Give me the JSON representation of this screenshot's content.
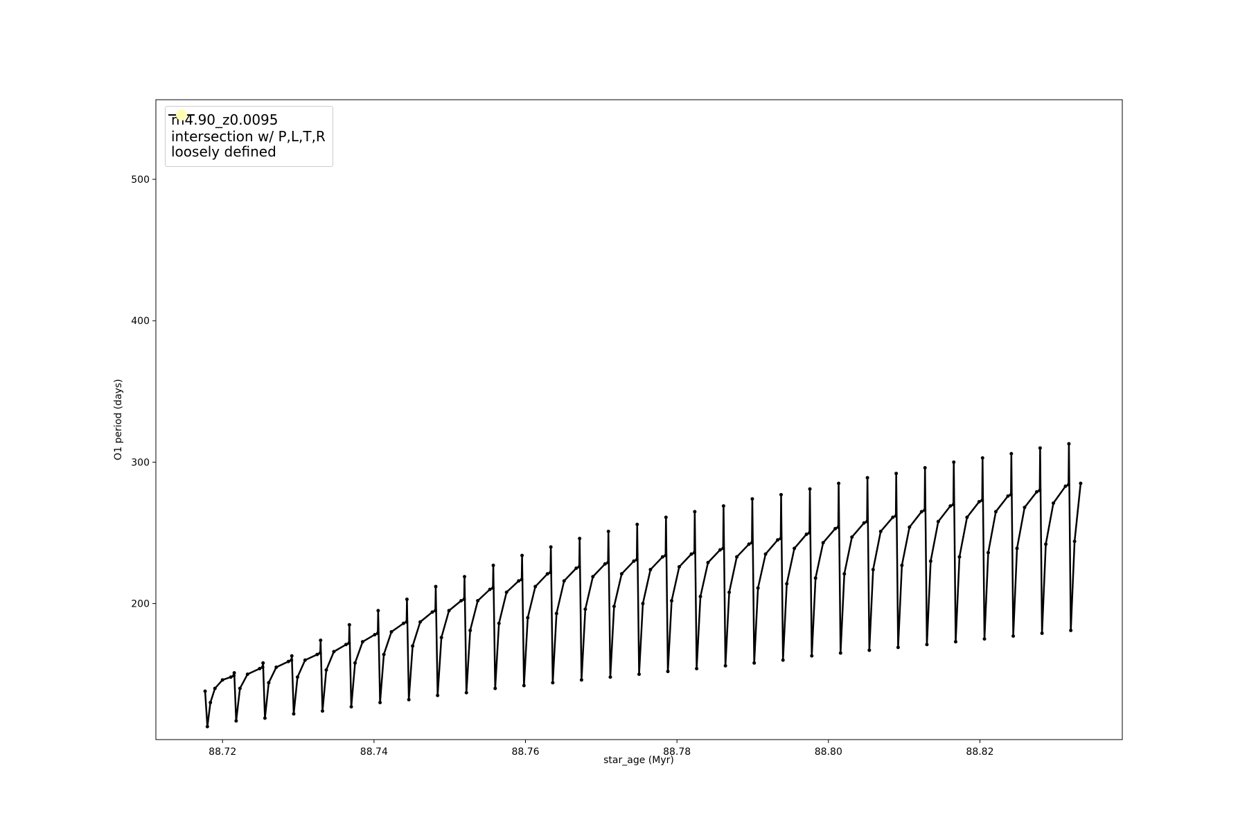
{
  "chart_data": {
    "type": "line",
    "xlabel": "star_age (Myr)",
    "ylabel": "O1 period (days)",
    "xlim": [
      88.7112,
      88.8388
    ],
    "ylim": [
      103.8,
      556.3
    ],
    "xticks": [
      88.72,
      88.74,
      88.76,
      88.78,
      {
        "value": 88.8,
        "label": "88.80"
      },
      88.82
    ],
    "yticks": [
      200,
      300,
      400,
      500
    ],
    "grid": false,
    "legend": "upper left",
    "series": [
      {
        "name": "m4.90_z0.0095",
        "color": "#000000",
        "x": [
          88.7177,
          88.718,
          88.7184,
          88.719,
          88.72,
          88.7211,
          88.7215,
          88.72155,
          88.7218,
          88.7223,
          88.7233,
          88.7249,
          88.7253,
          88.72535,
          88.7256,
          88.7261,
          88.7271,
          88.7287,
          88.7291,
          88.72915,
          88.7294,
          88.7299,
          88.7309,
          88.7325,
          88.7329,
          88.73295,
          88.7332,
          88.7337,
          88.7347,
          88.7363,
          88.7367,
          88.73675,
          88.737,
          88.7375,
          88.7385,
          88.7401,
          88.7405,
          88.74055,
          88.7408,
          88.7413,
          88.7423,
          88.7439,
          88.7443,
          88.74435,
          88.7446,
          88.7451,
          88.7461,
          88.7477,
          88.7481,
          88.74815,
          88.7484,
          88.7489,
          88.7499,
          88.7515,
          88.7519,
          88.75195,
          88.7522,
          88.7527,
          88.7537,
          88.7553,
          88.7557,
          88.75575,
          88.756,
          88.7565,
          88.7575,
          88.7591,
          88.7595,
          88.75955,
          88.7598,
          88.7603,
          88.7613,
          88.7629,
          88.7633,
          88.76335,
          88.7636,
          88.7641,
          88.7651,
          88.7667,
          88.7671,
          88.76715,
          88.7674,
          88.7679,
          88.7689,
          88.7705,
          88.7709,
          88.77095,
          88.7712,
          88.7717,
          88.7727,
          88.7743,
          88.7747,
          88.77475,
          88.775,
          88.7755,
          88.7765,
          88.7781,
          88.7785,
          88.77855,
          88.7788,
          88.7793,
          88.7803,
          88.7819,
          88.7823,
          88.78235,
          88.7826,
          88.7831,
          88.7841,
          88.7857,
          88.7861,
          88.78615,
          88.7864,
          88.7869,
          88.7879,
          88.7895,
          88.7899,
          88.78995,
          88.7902,
          88.7907,
          88.7917,
          88.7933,
          88.7937,
          88.79375,
          88.794,
          88.7945,
          88.7955,
          88.7971,
          88.7975,
          88.79755,
          88.7978,
          88.7983,
          88.7993,
          88.8009,
          88.8013,
          88.80135,
          88.8016,
          88.8021,
          88.8031,
          88.8047,
          88.8051,
          88.80515,
          88.8054,
          88.8059,
          88.8069,
          88.8085,
          88.8089,
          88.80895,
          88.8092,
          88.8097,
          88.8107,
          88.8123,
          88.8127,
          88.81275,
          88.813,
          88.8135,
          88.8145,
          88.8161,
          88.8165,
          88.81655,
          88.8168,
          88.8173,
          88.8183,
          88.8199,
          88.8203,
          88.82035,
          88.8206,
          88.8211,
          88.8221,
          88.8237,
          88.8241,
          88.82415,
          88.8244,
          88.8249,
          88.8259,
          88.8275,
          88.8279,
          88.82795,
          88.8282,
          88.8287,
          88.8297,
          88.8313,
          88.8317,
          88.83175,
          88.832,
          88.8325,
          88.8333
        ],
        "values": [
          138,
          113,
          130,
          140,
          146,
          148,
          149,
          151,
          117,
          140,
          150,
          154,
          155,
          158,
          119,
          144,
          155,
          159,
          160,
          163,
          122,
          148,
          160,
          164,
          165,
          174,
          124,
          153,
          166,
          171,
          172,
          185,
          127,
          158,
          173,
          178,
          179,
          195,
          130,
          164,
          180,
          186,
          187,
          203,
          132,
          170,
          187,
          194,
          195,
          212,
          135,
          176,
          195,
          202,
          203,
          219,
          137,
          181,
          202,
          210,
          211,
          227,
          140,
          186,
          208,
          216,
          217,
          234,
          142,
          190,
          212,
          221,
          222,
          240,
          144,
          193,
          216,
          225,
          226,
          246,
          146,
          196,
          219,
          228,
          229,
          251,
          148,
          198,
          221,
          230,
          231,
          256,
          150,
          200,
          224,
          233,
          234,
          261,
          152,
          202,
          226,
          235,
          236,
          265,
          154,
          205,
          229,
          238,
          239,
          269,
          156,
          208,
          233,
          242,
          243,
          274,
          158,
          211,
          235,
          245,
          246,
          277,
          160,
          214,
          239,
          249,
          250,
          281,
          163,
          218,
          243,
          253,
          254,
          285,
          165,
          221,
          247,
          257,
          258,
          289,
          167,
          224,
          251,
          261,
          262,
          292,
          169,
          227,
          254,
          265,
          266,
          296,
          171,
          230,
          258,
          269,
          270,
          300,
          173,
          233,
          261,
          272,
          273,
          303,
          175,
          236,
          265,
          276,
          277,
          306,
          177,
          239,
          268,
          279,
          280,
          310,
          179,
          242,
          271,
          283,
          284,
          313,
          181,
          244,
          285
        ]
      },
      {
        "name": "intersection w/ P,L,T,R\nloosely defined",
        "color": "#ffffb3",
        "type": "scatter",
        "x": [],
        "values": []
      }
    ]
  }
}
